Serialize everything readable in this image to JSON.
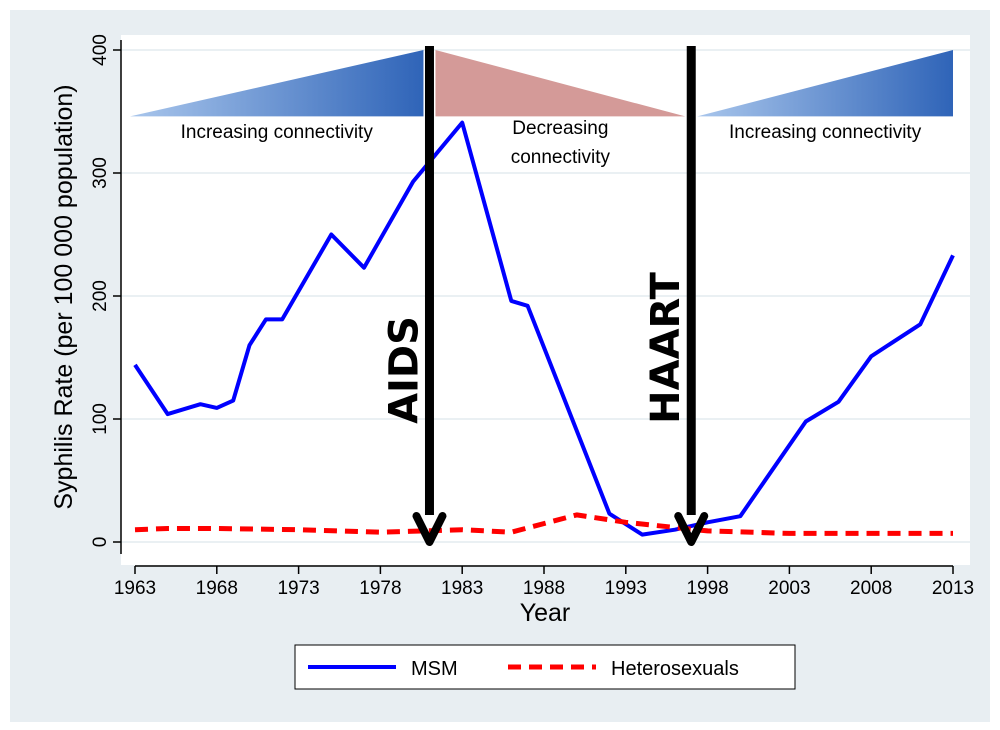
{
  "chart_data": {
    "type": "line",
    "xlabel": "Year",
    "ylabel": "Syphilis Rate (per 100 000 population)",
    "xlim": [
      1963,
      2013
    ],
    "ylim": [
      0,
      400
    ],
    "x_ticks": [
      "1963",
      "1968",
      "1973",
      "1978",
      "1983",
      "1988",
      "1993",
      "1998",
      "2003",
      "2008",
      "2013"
    ],
    "y_ticks": [
      "0",
      "100",
      "200",
      "300",
      "400"
    ],
    "grid": true,
    "legend_position": "bottom",
    "series": [
      {
        "name": "MSM",
        "color": "#0000ff",
        "style": "solid",
        "x": [
          1963,
          1965,
          1967,
          1968,
          1969,
          1970,
          1971,
          1972,
          1975,
          1977,
          1980,
          1983,
          1986,
          1987,
          1992,
          1994,
          1996,
          1998,
          2000,
          2004,
          2006,
          2008,
          2011,
          2013
        ],
        "y": [
          144,
          104,
          112,
          109,
          115,
          160,
          181,
          181,
          250,
          223,
          293,
          341,
          196,
          192,
          23,
          6,
          10,
          16,
          21,
          98,
          114,
          151,
          177,
          233
        ]
      },
      {
        "name": "Heterosexuals",
        "color": "#ff0000",
        "style": "dashed",
        "x": [
          1963,
          1965,
          1968,
          1973,
          1978,
          1983,
          1986,
          1990,
          1993,
          1998,
          2003,
          2008,
          2013
        ],
        "y": [
          10,
          11,
          11,
          10,
          8,
          10,
          8,
          22,
          16,
          9,
          7,
          7,
          7
        ]
      }
    ],
    "annotations": [
      {
        "label": "Increasing connectivity",
        "from": 1963,
        "to": 1981,
        "trend": "increasing",
        "color": "#4a86d4"
      },
      {
        "label": "Decreasing connectivity",
        "from": 1981,
        "to": 1997,
        "trend": "decreasing",
        "color": "#d49a98"
      },
      {
        "label": "Increasing connectivity",
        "from": 1997,
        "to": 2013,
        "trend": "increasing",
        "color": "#4a86d4"
      }
    ],
    "events": [
      {
        "label": "AIDS",
        "year": 1981
      },
      {
        "label": "HAART",
        "year": 1997
      }
    ]
  }
}
